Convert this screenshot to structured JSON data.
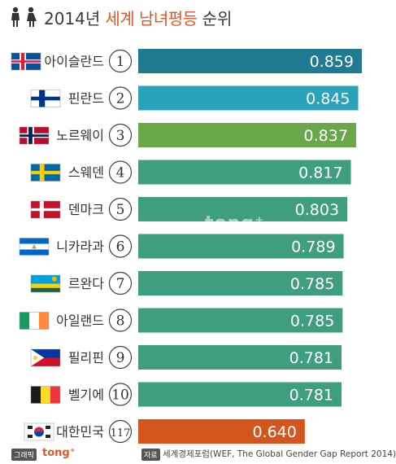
{
  "header": {
    "year": "2014년",
    "accent": "세계 남녀평등",
    "rest": "순위"
  },
  "chart_data": {
    "type": "bar",
    "orientation": "horizontal",
    "categories": [
      "아이슬란드",
      "핀란드",
      "노르웨이",
      "스웨덴",
      "덴마크",
      "니카라과",
      "르완다",
      "아일랜드",
      "필리핀",
      "벨기에",
      "대한민국"
    ],
    "ranks": [
      "1",
      "2",
      "3",
      "4",
      "5",
      "6",
      "7",
      "8",
      "9",
      "10",
      "117"
    ],
    "values": [
      0.859,
      0.845,
      0.837,
      0.817,
      0.803,
      0.789,
      0.785,
      0.785,
      0.781,
      0.781,
      0.64
    ],
    "value_labels": [
      "0.859",
      "0.845",
      "0.837",
      "0.817",
      "0.803",
      "0.789",
      "0.785",
      "0.785",
      "0.781",
      "0.781",
      "0.640"
    ],
    "bar_colors": [
      "#1f7a92",
      "#2aa2b8",
      "#6aa64a",
      "#3f9e80",
      "#3f9e80",
      "#3f9e80",
      "#3f9e80",
      "#3f9e80",
      "#3f9e80",
      "#3f9e80",
      "#d4561e"
    ],
    "flags": [
      "iceland-flag-icon",
      "finland-flag-icon",
      "norway-flag-icon",
      "sweden-flag-icon",
      "denmark-flag-icon",
      "nicaragua-flag-icon",
      "rwanda-flag-icon",
      "ireland-flag-icon",
      "philippines-flag-icon",
      "belgium-flag-icon",
      "south-korea-flag-icon"
    ],
    "title": "2014년 세계 남녀평등 순위"
  },
  "watermark": "tong⁺",
  "footer": {
    "brand_tag": "그래픽",
    "brand_name": "tong⁺",
    "source_tag": "자료",
    "source_text": "세계경제포럼(WEF, The Global Gender Gap Report 2014)"
  }
}
